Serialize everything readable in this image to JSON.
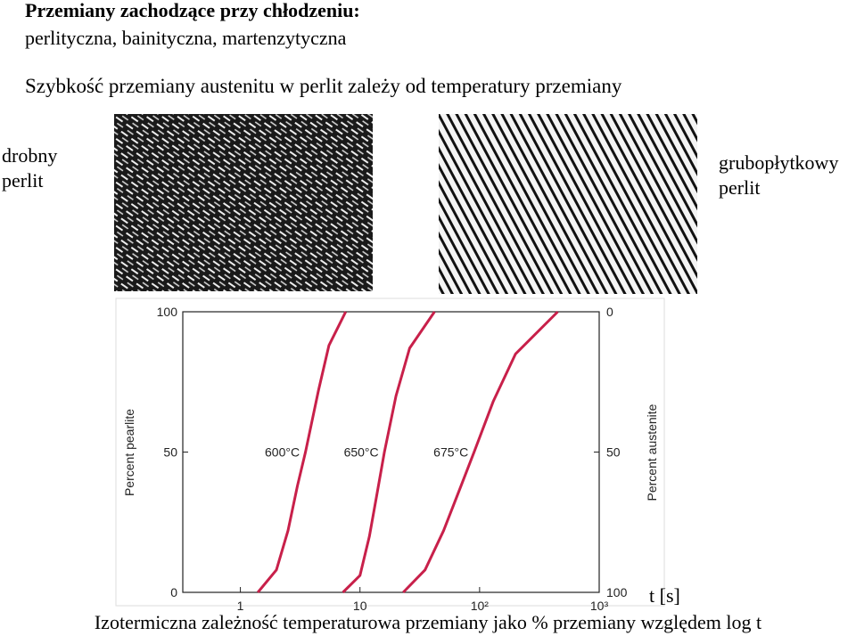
{
  "header": {
    "title": "Przemiany zachodzące przy chłodzeniu:",
    "subtitle": "perlityczna, bainityczna, martenzytyczna",
    "statement": "Szybkość przemiany austenitu w perlit zależy od temperatury przemiany"
  },
  "left_label": [
    "drobny",
    "perlit"
  ],
  "right_label": [
    "grubopłytkowy",
    "perlit"
  ],
  "caption": "Izotermiczna zależność temperaturowa przemiany jako % przemiany względem log t",
  "chart_data": {
    "type": "line",
    "x_label": "t [s]",
    "y_label": "Percent pearlite",
    "y2_label": "Percent austenite",
    "log_x": true,
    "xlim": [
      0.33,
      1000
    ],
    "xticks": [
      1,
      10,
      {
        "value": 100,
        "label": "10²"
      },
      {
        "value": 1000,
        "label": "10³"
      }
    ],
    "ylim": [
      0,
      100
    ],
    "yticks": [
      0,
      50,
      100
    ],
    "y2lim": [
      100,
      0
    ],
    "y2ticks": [
      0,
      50,
      100
    ],
    "series": [
      {
        "name": "600°C",
        "color": "#c8204a",
        "x": [
          1.4,
          2,
          2.5,
          3,
          3.5,
          4.5,
          5.5,
          7.6
        ],
        "values": [
          0,
          8,
          22,
          38,
          50,
          72,
          88,
          100
        ]
      },
      {
        "name": "650°C",
        "color": "#c8204a",
        "x": [
          7.2,
          10,
          12,
          14,
          16,
          20,
          26,
          42
        ],
        "values": [
          0,
          6,
          20,
          36,
          50,
          70,
          87,
          100
        ]
      },
      {
        "name": "675°C",
        "color": "#c8204a",
        "x": [
          23,
          35,
          50,
          70,
          90,
          130,
          200,
          450
        ],
        "values": [
          0,
          8,
          22,
          38,
          50,
          68,
          85,
          100
        ]
      }
    ]
  }
}
